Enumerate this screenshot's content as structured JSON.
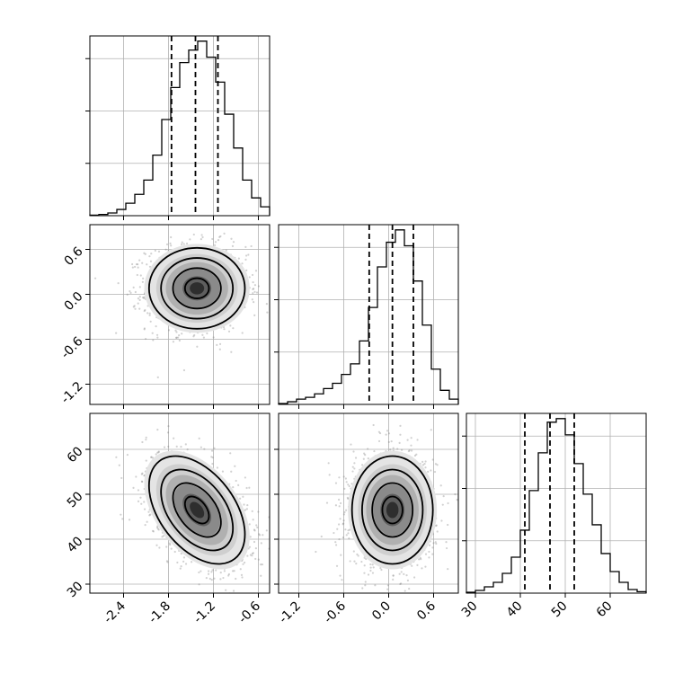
{
  "chart_data": {
    "type": "corner",
    "grid": true,
    "legend": "none",
    "title": "",
    "parameters": [
      {
        "range": [
          -2.85,
          -0.45
        ],
        "ticks": [
          "-2.4",
          "-1.8",
          "-1.2",
          "-0.6"
        ],
        "tick_values": [
          -2.4,
          -1.8,
          -1.2,
          -0.6
        ]
      },
      {
        "range": [
          -1.47,
          0.93
        ],
        "ticks": [
          "-1.2",
          "-0.6",
          "0.0",
          "0.6"
        ],
        "tick_values": [
          -1.2,
          -0.6,
          0.0,
          0.6
        ]
      },
      {
        "range": [
          28,
          68
        ],
        "ticks": [
          "30",
          "40",
          "50",
          "60"
        ],
        "tick_values": [
          30,
          40,
          50,
          60
        ]
      }
    ],
    "histograms": [
      {
        "parameter": 0,
        "bin_edges": [
          -2.85,
          -2.73,
          -2.61,
          -2.49,
          -2.37,
          -2.25,
          -2.13,
          -2.01,
          -1.89,
          -1.77,
          -1.65,
          -1.53,
          -1.41,
          -1.29,
          -1.17,
          -1.05,
          -0.93,
          -0.81,
          -0.69,
          -0.57,
          -0.45
        ],
        "counts": [
          0.3,
          0.7,
          1.5,
          3.5,
          7,
          12,
          20,
          34,
          54,
          72,
          86,
          93,
          98,
          89,
          75,
          57,
          38,
          20,
          10,
          5
        ],
        "quantiles": [
          -1.76,
          -1.44,
          -1.14
        ]
      },
      {
        "parameter": 1,
        "bin_edges": [
          -1.47,
          -1.35,
          -1.23,
          -1.11,
          -0.99,
          -0.87,
          -0.75,
          -0.63,
          -0.51,
          -0.39,
          -0.27,
          -0.15,
          -0.03,
          0.09,
          0.21,
          0.33,
          0.45,
          0.57,
          0.69,
          0.81,
          0.93
        ],
        "counts": [
          0.5,
          1.5,
          3,
          4,
          6,
          9,
          12,
          17,
          23,
          36,
          55,
          78,
          92,
          99,
          90,
          70,
          45,
          20,
          8,
          3
        ],
        "quantiles": [
          -0.26,
          0.05,
          0.33
        ]
      },
      {
        "parameter": 2,
        "bin_edges": [
          28,
          30,
          32,
          34,
          36,
          38,
          40,
          42,
          44,
          46,
          48,
          50,
          52,
          54,
          56,
          58,
          60,
          62,
          64,
          66,
          68
        ],
        "counts": [
          0.5,
          1.5,
          3.5,
          6,
          11,
          20,
          35,
          57,
          78,
          95,
          97,
          88,
          72,
          55,
          38,
          22,
          12,
          6,
          2,
          0.8
        ],
        "quantiles": [
          41,
          46.6,
          52
        ]
      }
    ],
    "pairs": [
      {
        "x": 0,
        "y": 1,
        "mean": [
          -1.42,
          0.08
        ],
        "sd": [
          0.32,
          0.27
        ],
        "rho": 0.0
      },
      {
        "x": 0,
        "y": 2,
        "mean": [
          -1.42,
          46.5
        ],
        "sd": [
          0.32,
          6.0
        ],
        "rho": -0.45
      },
      {
        "x": 1,
        "y": 2,
        "mean": [
          0.05,
          46.5
        ],
        "sd": [
          0.27,
          6.0
        ],
        "rho": 0.0
      }
    ]
  }
}
